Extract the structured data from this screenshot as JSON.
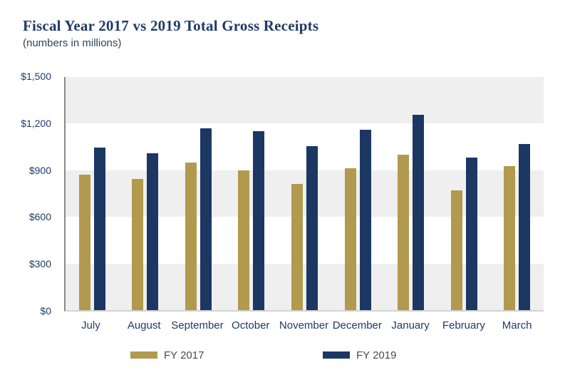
{
  "header": {
    "title": "Fiscal Year 2017 vs 2019 Total Gross Receipts",
    "subtitle": "(numbers in millions)"
  },
  "chart_data": {
    "type": "bar",
    "title": "Fiscal Year 2017 vs 2019 Total Gross Receipts",
    "subtitle": "(numbers in millions)",
    "categories": [
      "July",
      "August",
      "September",
      "October",
      "November",
      "December",
      "January",
      "February",
      "March"
    ],
    "series": [
      {
        "name": "FY 2017",
        "color": "#b19a4e",
        "values": [
          870,
          845,
          950,
          900,
          810,
          915,
          1000,
          770,
          925
        ]
      },
      {
        "name": "FY 2019",
        "color": "#1d3763",
        "values": [
          1045,
          1010,
          1170,
          1150,
          1055,
          1160,
          1255,
          980,
          1070
        ]
      }
    ],
    "xlabel": "",
    "ylabel": "",
    "ylim": [
      0,
      1500
    ],
    "yticks": [
      {
        "label": "$0",
        "value": 0
      },
      {
        "label": "$300",
        "value": 300
      },
      {
        "label": "$600",
        "value": 600
      },
      {
        "label": "$900",
        "value": 900
      },
      {
        "label": "$1,200",
        "value": 1200
      },
      {
        "label": "$1,500",
        "value": 1500
      }
    ],
    "grid": "striped-horizontal-bands",
    "legend_position": "bottom"
  },
  "colors": {
    "fy2017_gold": "#b19a4e",
    "fy2019_navy": "#1d3763",
    "band_gray": "#efefef",
    "band_white": "#ffffff",
    "axis_line": "#8a8a8a",
    "baseline": "#d2d2d2",
    "title_text": "#1e3a68",
    "tick_text": "#1e3a68",
    "legend_text": "#4a4a4a"
  },
  "legend": {
    "items": [
      {
        "label": "FY 2017"
      },
      {
        "label": "FY 2019"
      }
    ]
  }
}
